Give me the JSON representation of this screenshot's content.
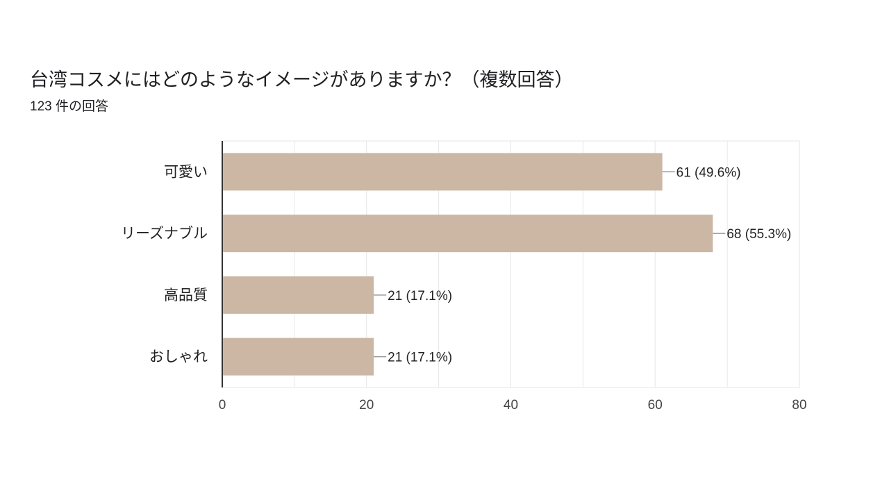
{
  "chart_data": {
    "type": "bar",
    "orientation": "horizontal",
    "title": "台湾コスメにはどのようなイメージがありますか？（複数回答）",
    "subtitle": "123 件の回答",
    "categories": [
      "可愛い",
      "リーズナブル",
      "高品質",
      "おしゃれ"
    ],
    "values": [
      61,
      68,
      21,
      21
    ],
    "data_labels": [
      "61 (49.6%)",
      "68 (55.3%)",
      "21 (17.1%)",
      "21 (17.1%)"
    ],
    "xlim": [
      0,
      80
    ],
    "x_ticks": [
      0,
      20,
      40,
      60,
      80
    ],
    "grid": true,
    "colors": {
      "bar": "#cbb7a4",
      "gridline": "#e6e6e6",
      "axis": "#333333",
      "leader": "#999999"
    }
  }
}
